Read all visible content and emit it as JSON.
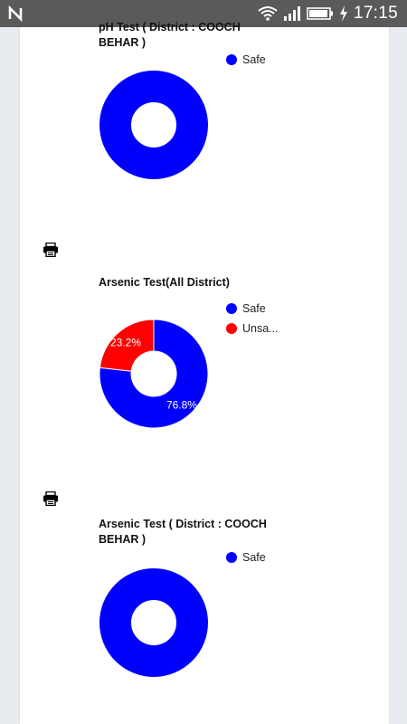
{
  "status_bar": {
    "time": "17:15",
    "left_icon": "n-notification-icon",
    "icons": [
      "wifi-icon",
      "signal-icon",
      "battery-icon",
      "charging-icon"
    ]
  },
  "colors": {
    "safe": "#0000ff",
    "unsafe": "#ff0000"
  },
  "chart_data": [
    {
      "type": "pie",
      "title": "pH Test ( District : COOCH BEHAR )",
      "legend": [
        "Safe"
      ],
      "slices": [
        {
          "label": "Safe",
          "value": 100,
          "color": "#0000ff"
        }
      ],
      "data_labels": []
    },
    {
      "type": "pie",
      "title": "Arsenic Test(All District)",
      "legend": [
        "Safe",
        "Unsa..."
      ],
      "slices": [
        {
          "label": "Safe",
          "value": 76.8,
          "color": "#0000ff"
        },
        {
          "label": "Unsafe",
          "value": 23.2,
          "color": "#ff0000"
        }
      ],
      "data_labels": [
        "76.8%",
        "23.2%"
      ]
    },
    {
      "type": "pie",
      "title": "Arsenic Test ( District : COOCH BEHAR )",
      "legend": [
        "Safe"
      ],
      "slices": [
        {
          "label": "Safe",
          "value": 100,
          "color": "#0000ff"
        }
      ],
      "data_labels": []
    }
  ]
}
